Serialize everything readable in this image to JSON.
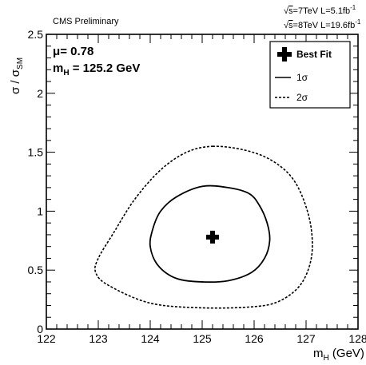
{
  "chart_data": {
    "type": "contour",
    "header_left": "CMS Preliminary",
    "energy_lines": [
      {
        "sqrt_s": "s",
        "text": "=7TeV L=5.1fb",
        "sup": "-1"
      },
      {
        "sqrt_s": "s",
        "text": "=8TeV L=19.6fb",
        "sup": "-1"
      }
    ],
    "xlabel": {
      "main": "m",
      "sub": "H",
      "rest": " (GeV)"
    },
    "ylabel": {
      "main": "σ / σ",
      "sub": "SM"
    },
    "xlim": [
      122,
      128
    ],
    "ylim": [
      0,
      2.5
    ],
    "xticks": [
      "122",
      "123",
      "124",
      "125",
      "126",
      "127",
      "128"
    ],
    "yticks": [
      "0",
      "0.5",
      "1",
      "1.5",
      "2",
      "2.5"
    ],
    "annotations": {
      "mu_label": "μ",
      "mu_value": "=  0.78",
      "mh_main": "m",
      "mh_sub": "H",
      "mh_value": " = 125.2 GeV"
    },
    "best_fit": {
      "x": 125.2,
      "y": 0.78
    },
    "legend": {
      "position": "top-right",
      "entries": [
        {
          "label": "Best Fit",
          "style": "marker"
        },
        {
          "label": "1σ",
          "style": "solid"
        },
        {
          "label": "2σ",
          "style": "dashed"
        }
      ]
    },
    "series": [
      {
        "style": "solid",
        "points": [
          [
            125.0,
            1.21
          ],
          [
            125.5,
            1.2
          ],
          [
            125.9,
            1.15
          ],
          [
            126.1,
            1.05
          ],
          [
            126.25,
            0.9
          ],
          [
            126.3,
            0.75
          ],
          [
            126.2,
            0.6
          ],
          [
            125.95,
            0.48
          ],
          [
            125.5,
            0.41
          ],
          [
            125.0,
            0.4
          ],
          [
            124.5,
            0.43
          ],
          [
            124.15,
            0.54
          ],
          [
            124.0,
            0.7
          ],
          [
            124.05,
            0.85
          ],
          [
            124.2,
            1.0
          ],
          [
            124.5,
            1.12
          ],
          [
            125.0,
            1.21
          ]
        ]
      },
      {
        "style": "dashed",
        "points": [
          [
            125.2,
            1.55
          ],
          [
            125.8,
            1.52
          ],
          [
            126.3,
            1.44
          ],
          [
            126.7,
            1.3
          ],
          [
            126.95,
            1.1
          ],
          [
            127.1,
            0.85
          ],
          [
            127.1,
            0.6
          ],
          [
            126.9,
            0.38
          ],
          [
            126.5,
            0.24
          ],
          [
            126.0,
            0.19
          ],
          [
            125.0,
            0.18
          ],
          [
            124.0,
            0.22
          ],
          [
            123.2,
            0.37
          ],
          [
            122.95,
            0.48
          ],
          [
            123.0,
            0.6
          ],
          [
            123.3,
            0.82
          ],
          [
            123.7,
            1.1
          ],
          [
            124.2,
            1.35
          ],
          [
            124.7,
            1.5
          ],
          [
            125.2,
            1.55
          ]
        ]
      }
    ]
  }
}
